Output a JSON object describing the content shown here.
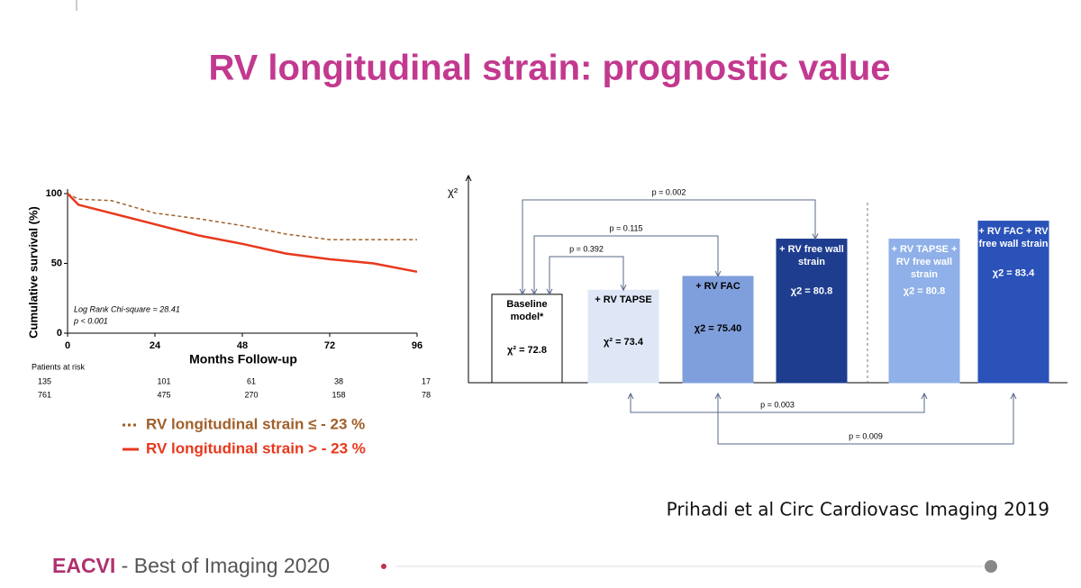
{
  "slide": {
    "title": "RV longitudinal strain: prognostic value",
    "citation": "Prihadi et al Circ Cardiovasc Imaging 2019",
    "footer_brand": "EACVI",
    "footer_text": " - Best of Imaging 2020"
  },
  "chart_data": [
    {
      "type": "line",
      "ylabel": "Cumulative survival (%)",
      "xlabel": "Months Follow-up",
      "annotations": [
        "Log Rank Chi-square = 28.41",
        "p < 0.001"
      ],
      "x": [
        0,
        3,
        12,
        24,
        36,
        48,
        60,
        72,
        84,
        96
      ],
      "xlim": [
        0,
        96
      ],
      "xticks": [
        0,
        24,
        48,
        72,
        96
      ],
      "ylim": [
        0,
        100
      ],
      "yticks": [
        0,
        50,
        100
      ],
      "series": [
        {
          "name": "RV longitudinal strain ≤ - 23 %",
          "color": "#a0602a",
          "line_style": "dashed",
          "values": [
            100,
            96,
            95,
            86,
            82,
            77,
            71,
            67,
            67,
            67
          ]
        },
        {
          "name": "RV longitudinal strain > - 23 %",
          "color": "#e8381c",
          "line_style": "solid",
          "values": [
            100,
            92,
            86,
            78,
            70,
            64,
            57,
            53,
            50,
            44
          ]
        }
      ],
      "risk_table": {
        "label": "Patients at risk",
        "rows": [
          [
            135,
            101,
            61,
            38,
            17
          ],
          [
            761,
            475,
            270,
            158,
            78
          ]
        ]
      }
    },
    {
      "type": "bar",
      "ylabel": "χ²",
      "categories": [
        "Baseline model*",
        "+ RV TAPSE",
        "+ RV FAC",
        "+ RV free wall strain",
        "+ RV TAPSE + RV free wall strain",
        "+ RV FAC + RV free wall strain"
      ],
      "values": [
        72.8,
        73.4,
        75.4,
        80.8,
        80.8,
        83.4
      ],
      "value_labels": [
        "χ² = 72.8",
        "χ² = 73.4",
        "χ2 = 75.40",
        "χ2 = 80.8",
        "χ2 = 80.8",
        "χ2 = 83.4"
      ],
      "colors": [
        "#ffffff",
        "#dfe7f6",
        "#7f9fdc",
        "#1e3d8f",
        "#8fb0e8",
        "#2a52b8"
      ],
      "text_colors": [
        "#000000",
        "#000000",
        "#000000",
        "#ffffff",
        "#ffffff",
        "#ffffff"
      ],
      "ylim": [
        60,
        90
      ],
      "p_values": [
        "p = 0.392",
        "p = 0.115",
        "p = 0.002",
        "p = 0.003",
        "p = 0.009"
      ]
    }
  ]
}
